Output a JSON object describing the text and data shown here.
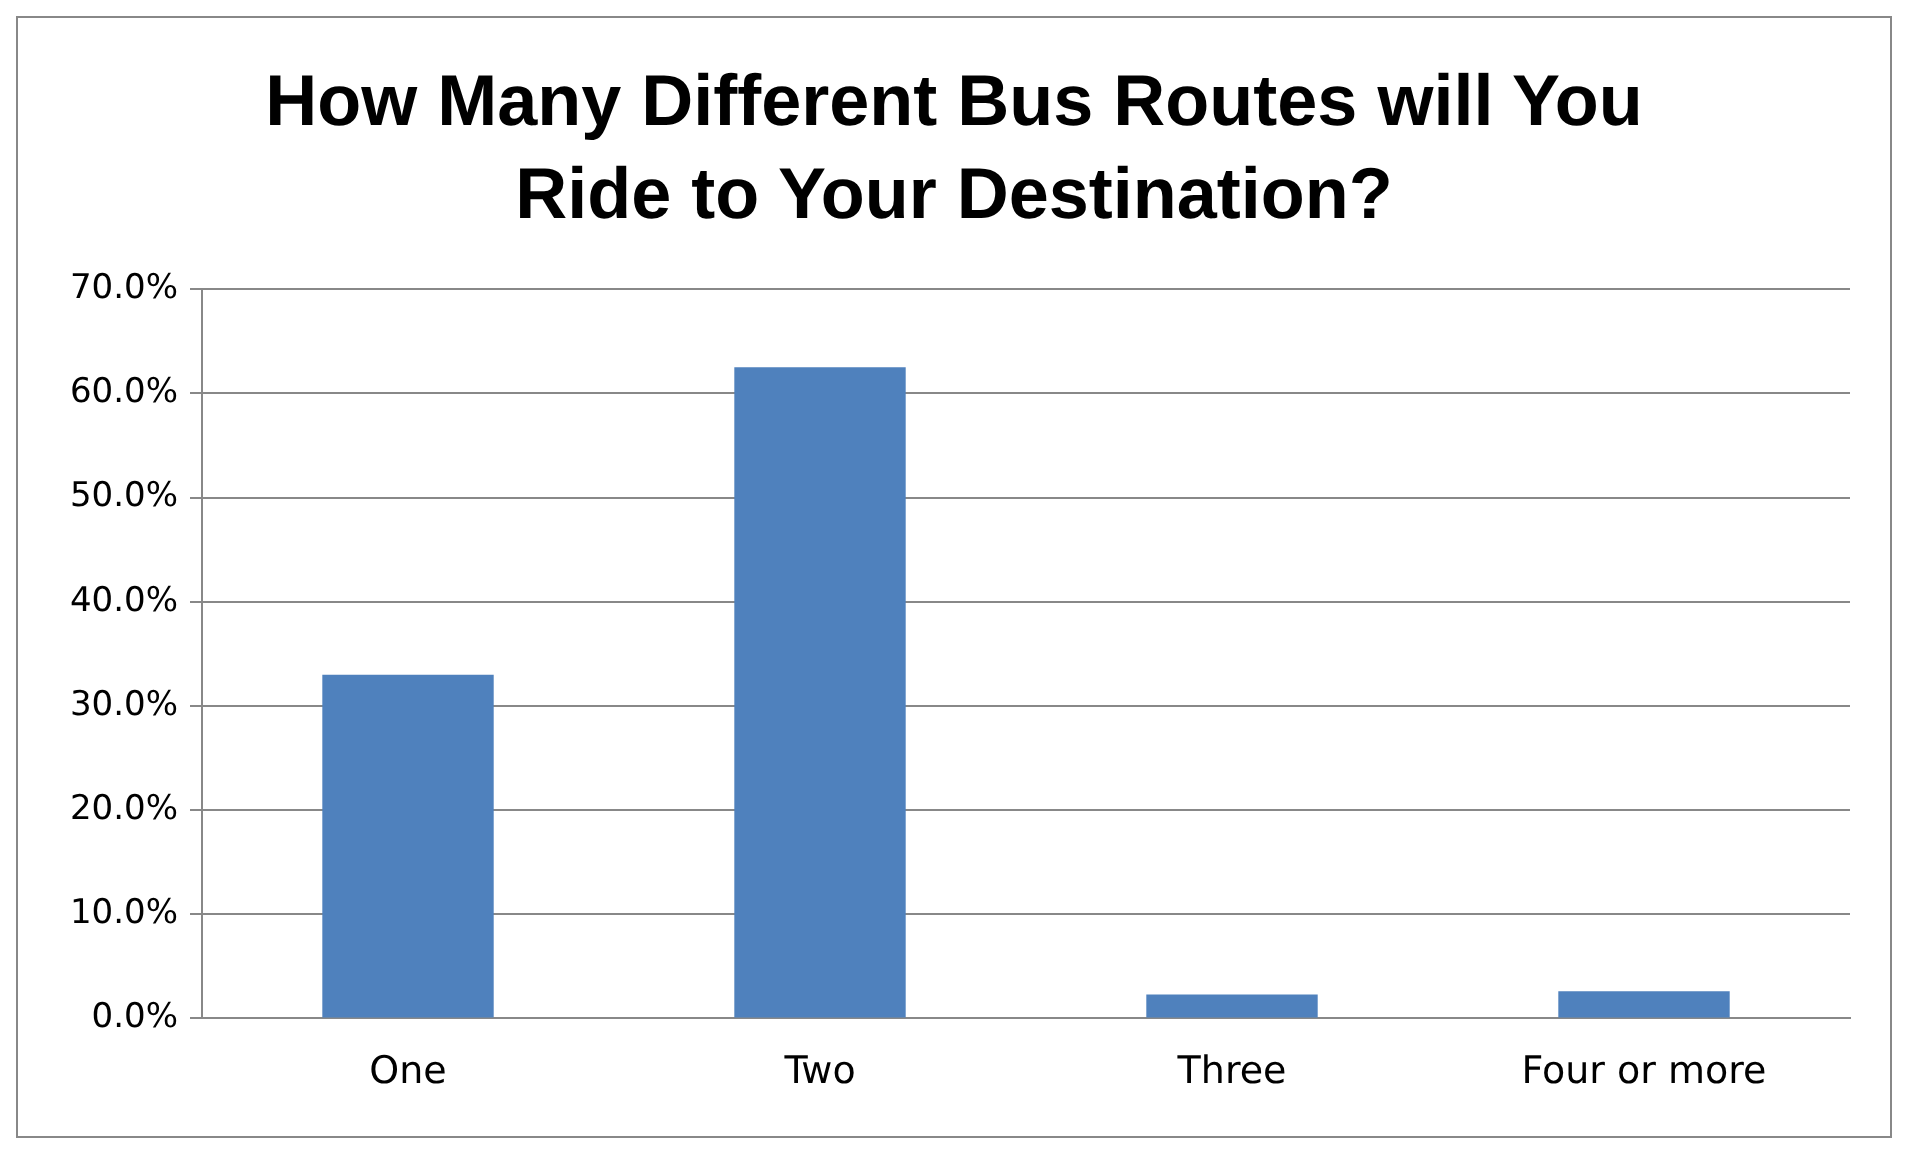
{
  "chart_data": {
    "type": "bar",
    "title": "How Many Different Bus Routes will You Ride to Your Destination?",
    "categories": [
      "One",
      "Two",
      "Three",
      "Four or more"
    ],
    "values": [
      33.0,
      62.5,
      2.3,
      2.6
    ],
    "color": "#4f81bd",
    "ylim": [
      0,
      70
    ],
    "yticks": [
      {
        "value": 0,
        "label": "0.0%"
      },
      {
        "value": 10,
        "label": "10.0%"
      },
      {
        "value": 20,
        "label": "20.0%"
      },
      {
        "value": 30,
        "label": "30.0%"
      },
      {
        "value": 40,
        "label": "40.0%"
      },
      {
        "value": 50,
        "label": "50.0%"
      },
      {
        "value": 60,
        "label": "60.0%"
      },
      {
        "value": 70,
        "label": "70.0%"
      }
    ],
    "grid": "y",
    "legend": false
  }
}
